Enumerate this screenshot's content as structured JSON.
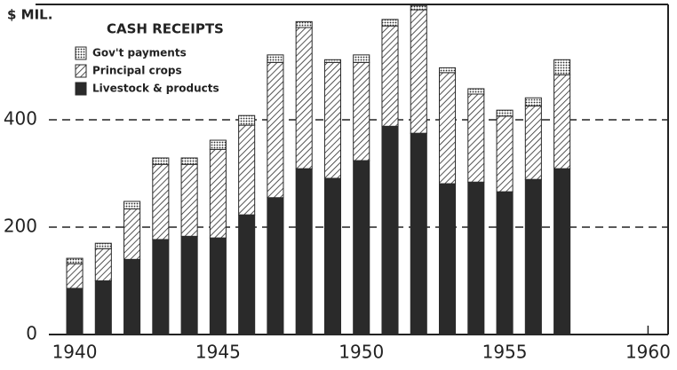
{
  "chart_data": {
    "type": "stacked-bar",
    "title": "CASH RECEIPTS",
    "y_label": "$ MIL.",
    "x": [
      1940,
      1941,
      1942,
      1943,
      1944,
      1945,
      1946,
      1947,
      1948,
      1949,
      1950,
      1951,
      1952,
      1953,
      1954,
      1955,
      1956,
      1957
    ],
    "series": [
      {
        "name": "Gov't payments",
        "color": "#2a2a2a",
        "values": [
          10,
          10,
          14,
          12,
          12,
          17,
          18,
          14,
          11,
          5,
          14,
          12,
          8,
          9,
          10,
          11,
          15,
          28
        ]
      },
      {
        "name": "Principal crops",
        "color": "#2a2a2a",
        "values": [
          46,
          60,
          94,
          140,
          134,
          165,
          167,
          252,
          263,
          216,
          183,
          187,
          230,
          207,
          164,
          141,
          137,
          175
        ]
      },
      {
        "name": "Livestock & products",
        "color": "#2a2a2a",
        "values": [
          86,
          100,
          140,
          177,
          183,
          180,
          223,
          255,
          309,
          291,
          324,
          388,
          375,
          281,
          284,
          266,
          289,
          309
        ]
      }
    ],
    "xlim": [
      1939.1,
      1960.7
    ],
    "xticks": [
      1940,
      1945,
      1950,
      1955,
      1960
    ],
    "ylim": [
      0,
      615
    ],
    "yticks": [
      0,
      200,
      400
    ],
    "grid": true
  }
}
